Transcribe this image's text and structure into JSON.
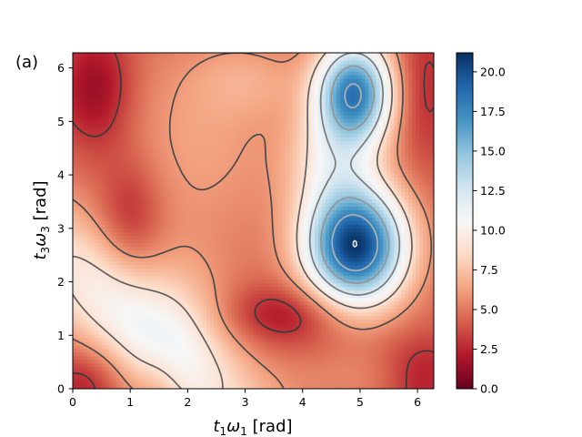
{
  "chart_data": {
    "type": "heatmap",
    "panel_label": "(a)",
    "title": "",
    "xlabel": {
      "main": "t",
      "sub1": "1",
      "mid": "ω",
      "sub2": "1",
      "unit": " [rad]"
    },
    "ylabel": {
      "main": "t",
      "sub1": "3",
      "mid": "ω",
      "sub2": "3",
      "unit": " [rad]"
    },
    "xlim": [
      0,
      6.283
    ],
    "ylim": [
      0,
      6.283
    ],
    "xticks": [
      0,
      1,
      2,
      3,
      4,
      5,
      6
    ],
    "yticks": [
      0,
      1,
      2,
      3,
      4,
      5,
      6
    ],
    "xtick_labels": [
      "0",
      "1",
      "2",
      "3",
      "4",
      "5",
      "6"
    ],
    "ytick_labels": [
      "0",
      "1",
      "2",
      "3",
      "4",
      "5",
      "6"
    ],
    "colorbar": {
      "colormap": "RdBu",
      "range": [
        0,
        21.2
      ],
      "ticks": [
        0.0,
        2.5,
        5.0,
        7.5,
        10.0,
        12.5,
        15.0,
        17.5,
        20.0
      ],
      "tick_labels": [
        "0.0",
        "2.5",
        "5.0",
        "7.5",
        "10.0",
        "12.5",
        "15.0",
        "17.5",
        "20.0"
      ]
    },
    "contour_levels": [
      3,
      6,
      9,
      12,
      15,
      18,
      21
    ],
    "contour_colors": [
      "#3a3a3a",
      "#4a4a4a",
      "#606060",
      "#7a7a7a",
      "#959595",
      "#b0b0b0",
      "#dcdcdc"
    ],
    "peaks": [
      {
        "x": 4.92,
        "y": 2.68,
        "value": 21.2
      },
      {
        "x": 4.9,
        "y": 5.55,
        "value": 19.0
      }
    ],
    "minima": [
      {
        "x": 0.4,
        "y": 5.8,
        "value": 0.5
      },
      {
        "x": 0.2,
        "y": 0.1,
        "value": 0.5
      },
      {
        "x": 6.1,
        "y": 0.2,
        "value": 0.5
      },
      {
        "x": 3.7,
        "y": 1.4,
        "value": 1.0
      }
    ]
  }
}
